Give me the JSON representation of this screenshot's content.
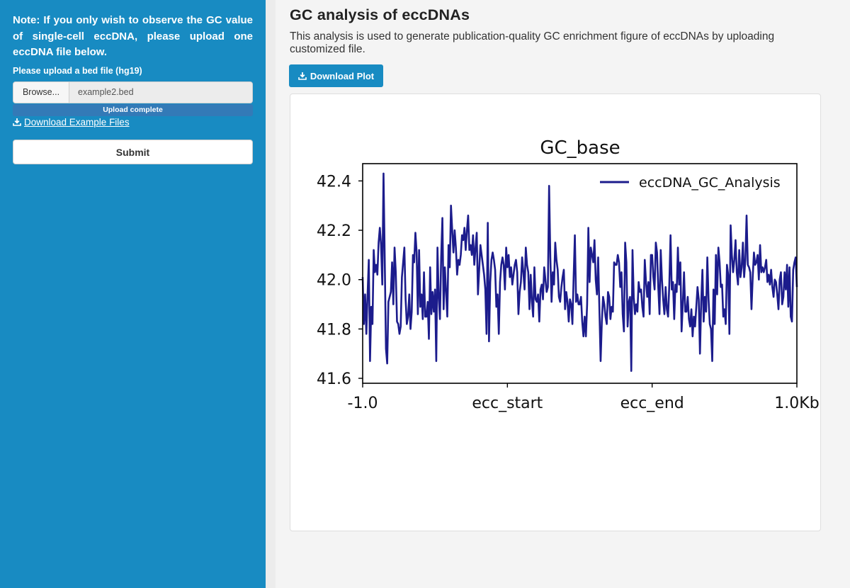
{
  "sidebar": {
    "note": "Note: If you only wish to observe the GC value of single-cell eccDNA, please upload one eccDNA file below.",
    "upload_label": "Please upload a bed file (hg19)",
    "browse_label": "Browse...",
    "file_name": "example2.bed",
    "progress_text": "Upload complete",
    "progress_value": 1.0,
    "download_example_label": "Download Example Files",
    "submit_label": "Submit",
    "bg_color": "#188bc2"
  },
  "main": {
    "title": "GC analysis of eccDNAs",
    "description": "This analysis is used to generate publication-quality GC enrichment figure of eccDNAs by uploading customized file.",
    "download_plot_label": "Download Plot"
  },
  "chart_data": {
    "type": "line",
    "title": "GC_base",
    "xlabel": "",
    "ylabel": "",
    "xtick_labels": [
      "-1.0",
      "ecc_start",
      "ecc_end",
      "1.0Kb"
    ],
    "xlim": [
      0,
      300
    ],
    "ylim": [
      41.58,
      42.47
    ],
    "yticks": [
      41.6,
      41.8,
      42.0,
      42.2,
      42.4
    ],
    "grid": false,
    "legend_position": "top-right",
    "series": [
      {
        "name": "eccDNA_GC_Analysis",
        "color": "#1c1c8c",
        "y": [
          42.01,
          41.82,
          41.94,
          41.78,
          41.94,
          42.08,
          41.67,
          41.89,
          41.82,
          42.12,
          42.03,
          42.06,
          42.02,
          42.15,
          42.21,
          42.14,
          41.98,
          42.43,
          42.08,
          41.72,
          41.66,
          41.91,
          41.93,
          41.95,
          42.07,
          41.9,
          42.13,
          42.03,
          41.83,
          41.82,
          41.78,
          41.81,
          42.01,
          42.07,
          42.13,
          41.92,
          41.82,
          41.85,
          41.94,
          41.8,
          41.87,
          42.1,
          42.07,
          42.19,
          42.11,
          41.86,
          42.12,
          41.89,
          41.94,
          41.84,
          42.03,
          41.85,
          41.85,
          41.91,
          41.76,
          42.05,
          41.86,
          41.95,
          41.87,
          41.96,
          41.67,
          42.13,
          41.93,
          41.84,
          42.09,
          42.25,
          41.88,
          42.05,
          41.95,
          41.85,
          42.14,
          42.05,
          42.3,
          42.2,
          42.11,
          42.2,
          42.13,
          42.02,
          42.08,
          42.06,
          42.1,
          42.18,
          42.16,
          42.21,
          42.12,
          42.2,
          42.26,
          42.12,
          42.14,
          42.1,
          42.18,
          42.06,
          42.13,
          42.19,
          41.94,
          42.04,
          42.14,
          42.1,
          42.06,
          42.02,
          41.96,
          41.78,
          42.23,
          41.75,
          41.99,
          42.08,
          42.11,
          42.08,
          42.04,
          41.89,
          41.94,
          41.78,
          41.99,
          42.06,
          42.09,
          42.06,
          41.96,
          42.13,
          42.05,
          42.1,
          42.01,
          42.05,
          41.98,
          42.02,
          42.06,
          42.08,
          42.03,
          41.86,
          41.95,
          41.99,
          42.09,
          42.03,
          41.96,
          42.13,
          42.06,
          42.03,
          41.88,
          42.02,
          41.91,
          41.85,
          42.05,
          41.92,
          41.91,
          41.94,
          41.83,
          41.96,
          41.98,
          41.92,
          42.05,
          42.0,
          41.95,
          41.97,
          42.38,
          42.09,
          41.91,
          42.03,
          41.98,
          42.15,
          42.08,
          42.04,
          41.93,
          41.91,
          41.97,
          42.01,
          42.04,
          41.88,
          41.95,
          41.91,
          41.83,
          41.92,
          41.9,
          41.82,
          42.01,
          42.18,
          41.91,
          41.94,
          41.9,
          41.9,
          41.93,
          41.83,
          41.77,
          41.85,
          41.77,
          41.9,
          42.21,
          41.99,
          42.13,
          42.1,
          42.07,
          42.16,
          42.0,
          41.94,
          42.09,
          41.88,
          41.67,
          41.83,
          41.93,
          41.9,
          41.85,
          41.82,
          41.95,
          41.93,
          41.84,
          41.89,
          41.87,
          42.07,
          42.06,
          42.06,
          42.1,
          42.07,
          41.97,
          42.03,
          41.86,
          41.79,
          42.15,
          42.07,
          41.81,
          41.91,
          41.93,
          41.63,
          42.12,
          41.93,
          41.86,
          41.9,
          41.87,
          41.99,
          41.95,
          41.96,
          41.89,
          41.85,
          42.08,
          41.99,
          41.93,
          41.99,
          41.86,
          42.1,
          42.1,
          42.01,
          41.96,
          42.15,
          42.11,
          41.97,
          41.86,
          42.12,
          42.0,
          41.92,
          41.86,
          41.97,
          41.88,
          41.85,
          41.98,
          42.18,
          41.96,
          41.99,
          41.84,
          41.98,
          41.95,
          42.13,
          41.98,
          42.07,
          41.79,
          41.9,
          42.03,
          41.87,
          41.87,
          41.93,
          41.84,
          41.81,
          41.88,
          41.77,
          41.85,
          41.81,
          41.89,
          41.97,
          41.92,
          41.7,
          41.91,
          42.04,
          41.83,
          41.93,
          41.87,
          42.09,
          41.92,
          41.82,
          41.8,
          41.67,
          41.96,
          41.82,
          42.1,
          41.94,
          42.13,
          42.07,
          41.97,
          41.98,
          41.85,
          41.88,
          41.82,
          42.06,
          42.02,
          41.78,
          42.22,
          42.1,
          42.03,
          42.08,
          42.16,
          42.03,
          41.98,
          42.12,
          42.01,
          42.05,
          42.15,
          42.01,
          42.08,
          42.26,
          42.06,
          42.05,
          42.03,
          41.88,
          42.01,
          42.11,
          42.06,
          42.07,
          42.1,
          42.0,
          42.14,
          42.03,
          42.05,
          42.03,
          42.05,
          42.08,
          41.99,
          42.02,
          41.98,
          42.04,
          41.97,
          41.93,
          42.0,
          41.99,
          41.94,
          41.88,
          42.0,
          42.03,
          41.9,
          41.93,
          42.03,
          41.96,
          42.06,
          41.89,
          42.05,
          41.85,
          41.83,
          42.04,
          42.07,
          42.09,
          41.97
        ]
      }
    ]
  }
}
